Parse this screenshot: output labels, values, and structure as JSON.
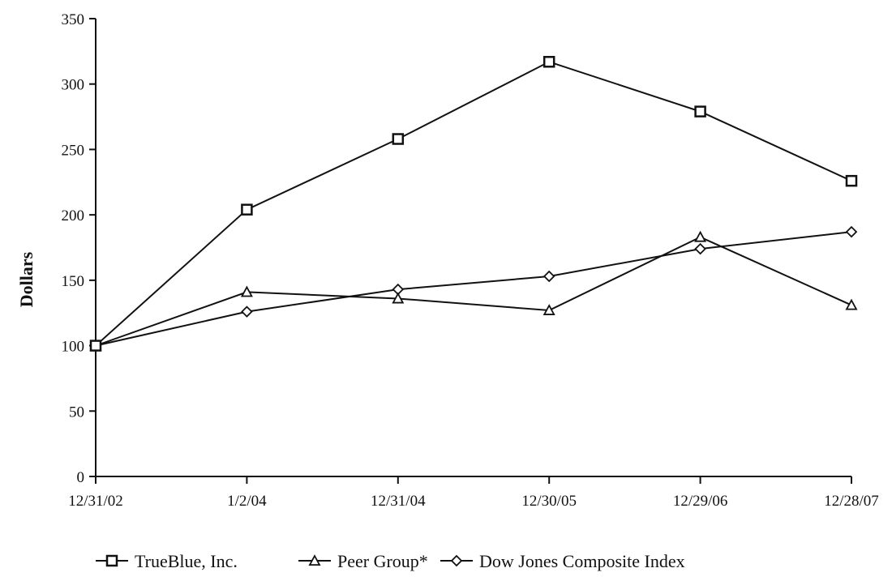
{
  "chart_data": {
    "type": "line",
    "title": "",
    "xlabel": "",
    "ylabel": "Dollars",
    "ylim": [
      0,
      350
    ],
    "yticks": [
      0,
      50,
      100,
      150,
      200,
      250,
      300,
      350
    ],
    "categories": [
      "12/31/02",
      "1/2/04",
      "12/31/04",
      "12/30/05",
      "12/29/06",
      "12/28/07"
    ],
    "grid": false,
    "legend": "bottom",
    "series": [
      {
        "name": "TrueBlue, Inc.",
        "marker": "square",
        "values": [
          100,
          204,
          258,
          317,
          279,
          226
        ]
      },
      {
        "name": "Peer Group*",
        "marker": "triangle",
        "values": [
          100,
          141,
          136,
          127,
          183,
          131
        ]
      },
      {
        "name": "Dow Jones Composite Index",
        "marker": "diamond",
        "values": [
          100,
          126,
          143,
          153,
          174,
          187
        ]
      }
    ]
  }
}
